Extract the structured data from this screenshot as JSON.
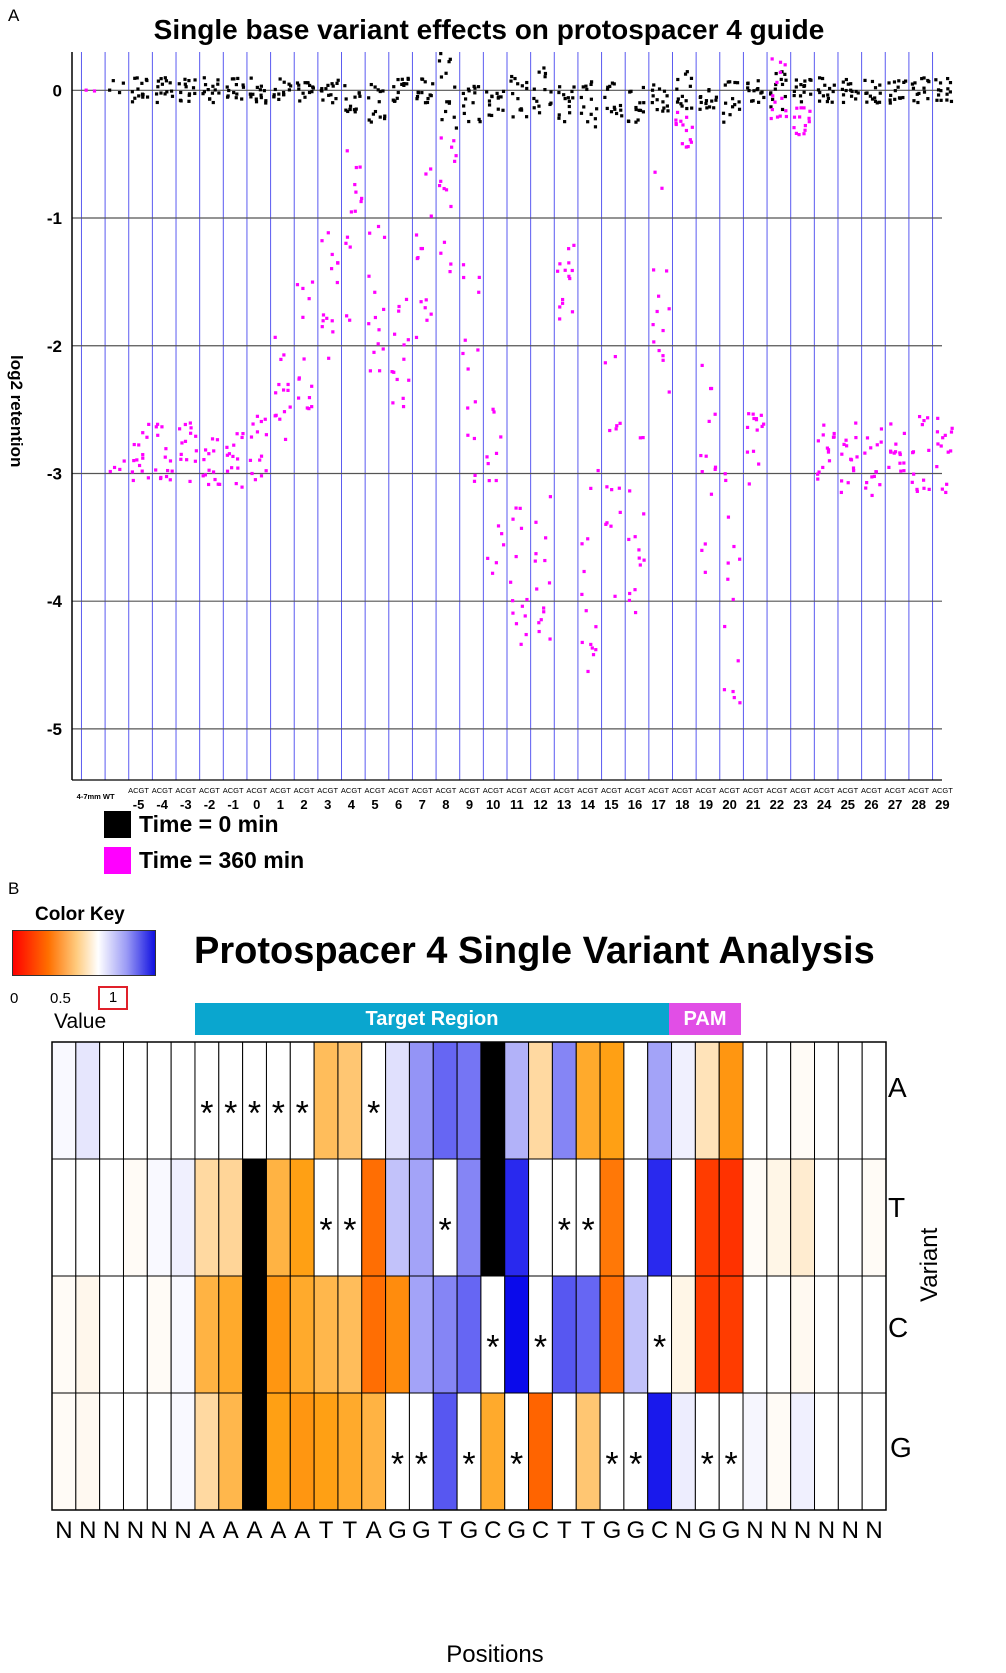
{
  "panels": {
    "a": "A",
    "b": "B"
  },
  "chart_data": [
    {
      "type": "scatter",
      "title": "Single base variant effects on protospacer 4 guide",
      "xlabel": "",
      "ylabel": "log2 retention",
      "ylim": [
        -5.4,
        0.3
      ],
      "yticks": [
        0,
        -1,
        -2,
        -3,
        -4,
        -5
      ],
      "grid": true,
      "wt_label": "4-7mm WT",
      "variant_letters": "ACGT",
      "positions": [
        "-5",
        "-4",
        "-3",
        "-2",
        "-1",
        "0",
        "1",
        "2",
        "3",
        "4",
        "5",
        "6",
        "7",
        "8",
        "9",
        "10",
        "11",
        "12",
        "13",
        "14",
        "15",
        "16",
        "17",
        "18",
        "19",
        "20",
        "21",
        "22",
        "23",
        "24",
        "25",
        "26",
        "27",
        "28",
        "29"
      ],
      "colors": {
        "t0": "#000000",
        "t360": "#ff00ff",
        "grid": "#5a5af0",
        "hgrid": "#555555"
      },
      "series": [
        {
          "name": "Time = 0 min",
          "note": "per-position median log2 retention at 0 min",
          "values": [
            0,
            0,
            0,
            0,
            0,
            0,
            0,
            0,
            0,
            -0.05,
            -0.1,
            0,
            0,
            0,
            -0.1,
            -0.1,
            -0.05,
            0,
            -0.1,
            -0.1,
            -0.05,
            -0.1,
            -0.05,
            0,
            -0.05,
            -0.05,
            0,
            0,
            0,
            0,
            0,
            0,
            0,
            0,
            0
          ],
          "spread": [
            0.2,
            0.2,
            0.2,
            0.2,
            0.2,
            0.2,
            0.2,
            0.2,
            0.2,
            0.3,
            0.3,
            0.2,
            0.2,
            0.6,
            0.3,
            0.2,
            0.4,
            0.4,
            0.3,
            0.4,
            0.3,
            0.3,
            0.3,
            0.3,
            0.2,
            0.4,
            0.2,
            0.3,
            0.2,
            0.2,
            0.2,
            0.2,
            0.2,
            0.2,
            0.2
          ]
        },
        {
          "name": "Time = 360 min",
          "note": "per-position median log2 retention at 360 min",
          "values": [
            -2.85,
            -2.8,
            -2.85,
            -2.85,
            -2.9,
            -2.8,
            -2.3,
            -2.0,
            -1.6,
            -1.2,
            -1.6,
            -2.0,
            -1.3,
            -0.9,
            -2.2,
            -3.0,
            -3.7,
            -3.7,
            -1.5,
            -3.8,
            -3.0,
            -3.5,
            -1.6,
            -0.3,
            -3.0,
            -3.9,
            -2.8,
            0.0,
            -0.2,
            -2.85,
            -2.85,
            -2.9,
            -2.85,
            -2.85,
            -2.85
          ],
          "spread": [
            0.5,
            0.5,
            0.5,
            0.5,
            0.5,
            0.5,
            1.0,
            1.0,
            1.0,
            1.6,
            1.2,
            1.3,
            1.4,
            1.2,
            1.8,
            1.6,
            1.3,
            1.2,
            0.6,
            1.8,
            2.0,
            1.6,
            2.2,
            0.3,
            1.8,
            1.9,
            0.6,
            0.5,
            0.3,
            0.5,
            0.6,
            0.6,
            0.5,
            0.6,
            0.6
          ]
        }
      ],
      "wt_values": {
        "t0": 0,
        "t360": -2.9
      },
      "legend": [
        {
          "label": "Time = 0 min",
          "color": "#000000"
        },
        {
          "label": "Time = 360 min",
          "color": "#ff00ff"
        }
      ],
      "legend_position": "bottom-left"
    },
    {
      "type": "heatmap",
      "title": "Protospacer 4 Single Variant Analysis",
      "color_key": {
        "title": "Color Key",
        "ticks": [
          "0",
          "0.5",
          "1"
        ],
        "label": "Value",
        "highlighted_tick": "1"
      },
      "regions": [
        {
          "label": "Target Region",
          "color": "#0aa6cf",
          "start_col": 6,
          "end_col": 25
        },
        {
          "label": "PAM",
          "color": "#e14ee6",
          "start_col": 26,
          "end_col": 28
        }
      ],
      "rows": [
        "A",
        "T",
        "C",
        "G"
      ],
      "row_title": "Variant",
      "columns": [
        "N",
        "N",
        "N",
        "N",
        "N",
        "N",
        "A",
        "A",
        "A",
        "A",
        "A",
        "T",
        "T",
        "A",
        "G",
        "G",
        "T",
        "G",
        "C",
        "G",
        "C",
        "T",
        "T",
        "G",
        "G",
        "C",
        "N",
        "G",
        "G",
        "N",
        "N",
        "N",
        "N",
        "N",
        "N"
      ],
      "xlabel": "Positions",
      "note": "values are ratio of retention (0 red .. 0.5 orange .. 1 white .. >1 blue); null = reference base (black); * = reference-identical cell",
      "values": [
        [
          1.02,
          1.08,
          1.0,
          1.0,
          1.0,
          1.0,
          1.0,
          1.0,
          1.0,
          1.0,
          1.0,
          0.65,
          0.7,
          1.0,
          1.1,
          1.35,
          1.5,
          1.45,
          null,
          1.25,
          0.8,
          1.4,
          0.55,
          0.5,
          1.0,
          1.3,
          1.05,
          0.85,
          0.45,
          1.0,
          1.0,
          0.98,
          1.0,
          1.0,
          1.0
        ],
        [
          1.0,
          1.0,
          1.0,
          0.98,
          1.02,
          1.05,
          0.8,
          0.78,
          null,
          0.6,
          0.5,
          1.0,
          1.0,
          0.25,
          1.2,
          1.3,
          1.0,
          1.4,
          null,
          1.7,
          1.0,
          1.0,
          1.0,
          0.3,
          1.0,
          1.7,
          1.0,
          0.12,
          0.1,
          0.98,
          0.95,
          0.9,
          1.0,
          1.0,
          0.98
        ],
        [
          0.98,
          0.96,
          1.0,
          1.0,
          0.98,
          1.02,
          0.6,
          0.55,
          null,
          0.45,
          0.55,
          0.62,
          0.65,
          0.25,
          0.4,
          1.3,
          1.4,
          1.5,
          1.0,
          1.8,
          1.0,
          1.55,
          1.5,
          0.25,
          1.2,
          1.0,
          0.95,
          0.12,
          0.12,
          1.0,
          1.0,
          0.97,
          1.0,
          1.0,
          1.0
        ],
        [
          0.98,
          0.97,
          1.0,
          1.0,
          1.0,
          1.02,
          0.8,
          0.62,
          null,
          0.5,
          0.45,
          0.5,
          0.55,
          0.6,
          1.0,
          1.0,
          1.55,
          1.0,
          0.55,
          1.0,
          0.2,
          1.0,
          0.7,
          1.0,
          1.0,
          1.75,
          1.06,
          1.0,
          1.0,
          1.03,
          0.98,
          1.05,
          1.0,
          1.0,
          1.0
        ]
      ],
      "stars": [
        [
          6,
          7,
          8,
          9,
          10,
          13
        ],
        [
          11,
          12,
          16,
          21,
          22
        ],
        [
          18,
          20,
          25
        ],
        [
          14,
          15,
          17,
          19,
          23,
          24,
          27,
          28
        ]
      ]
    }
  ]
}
